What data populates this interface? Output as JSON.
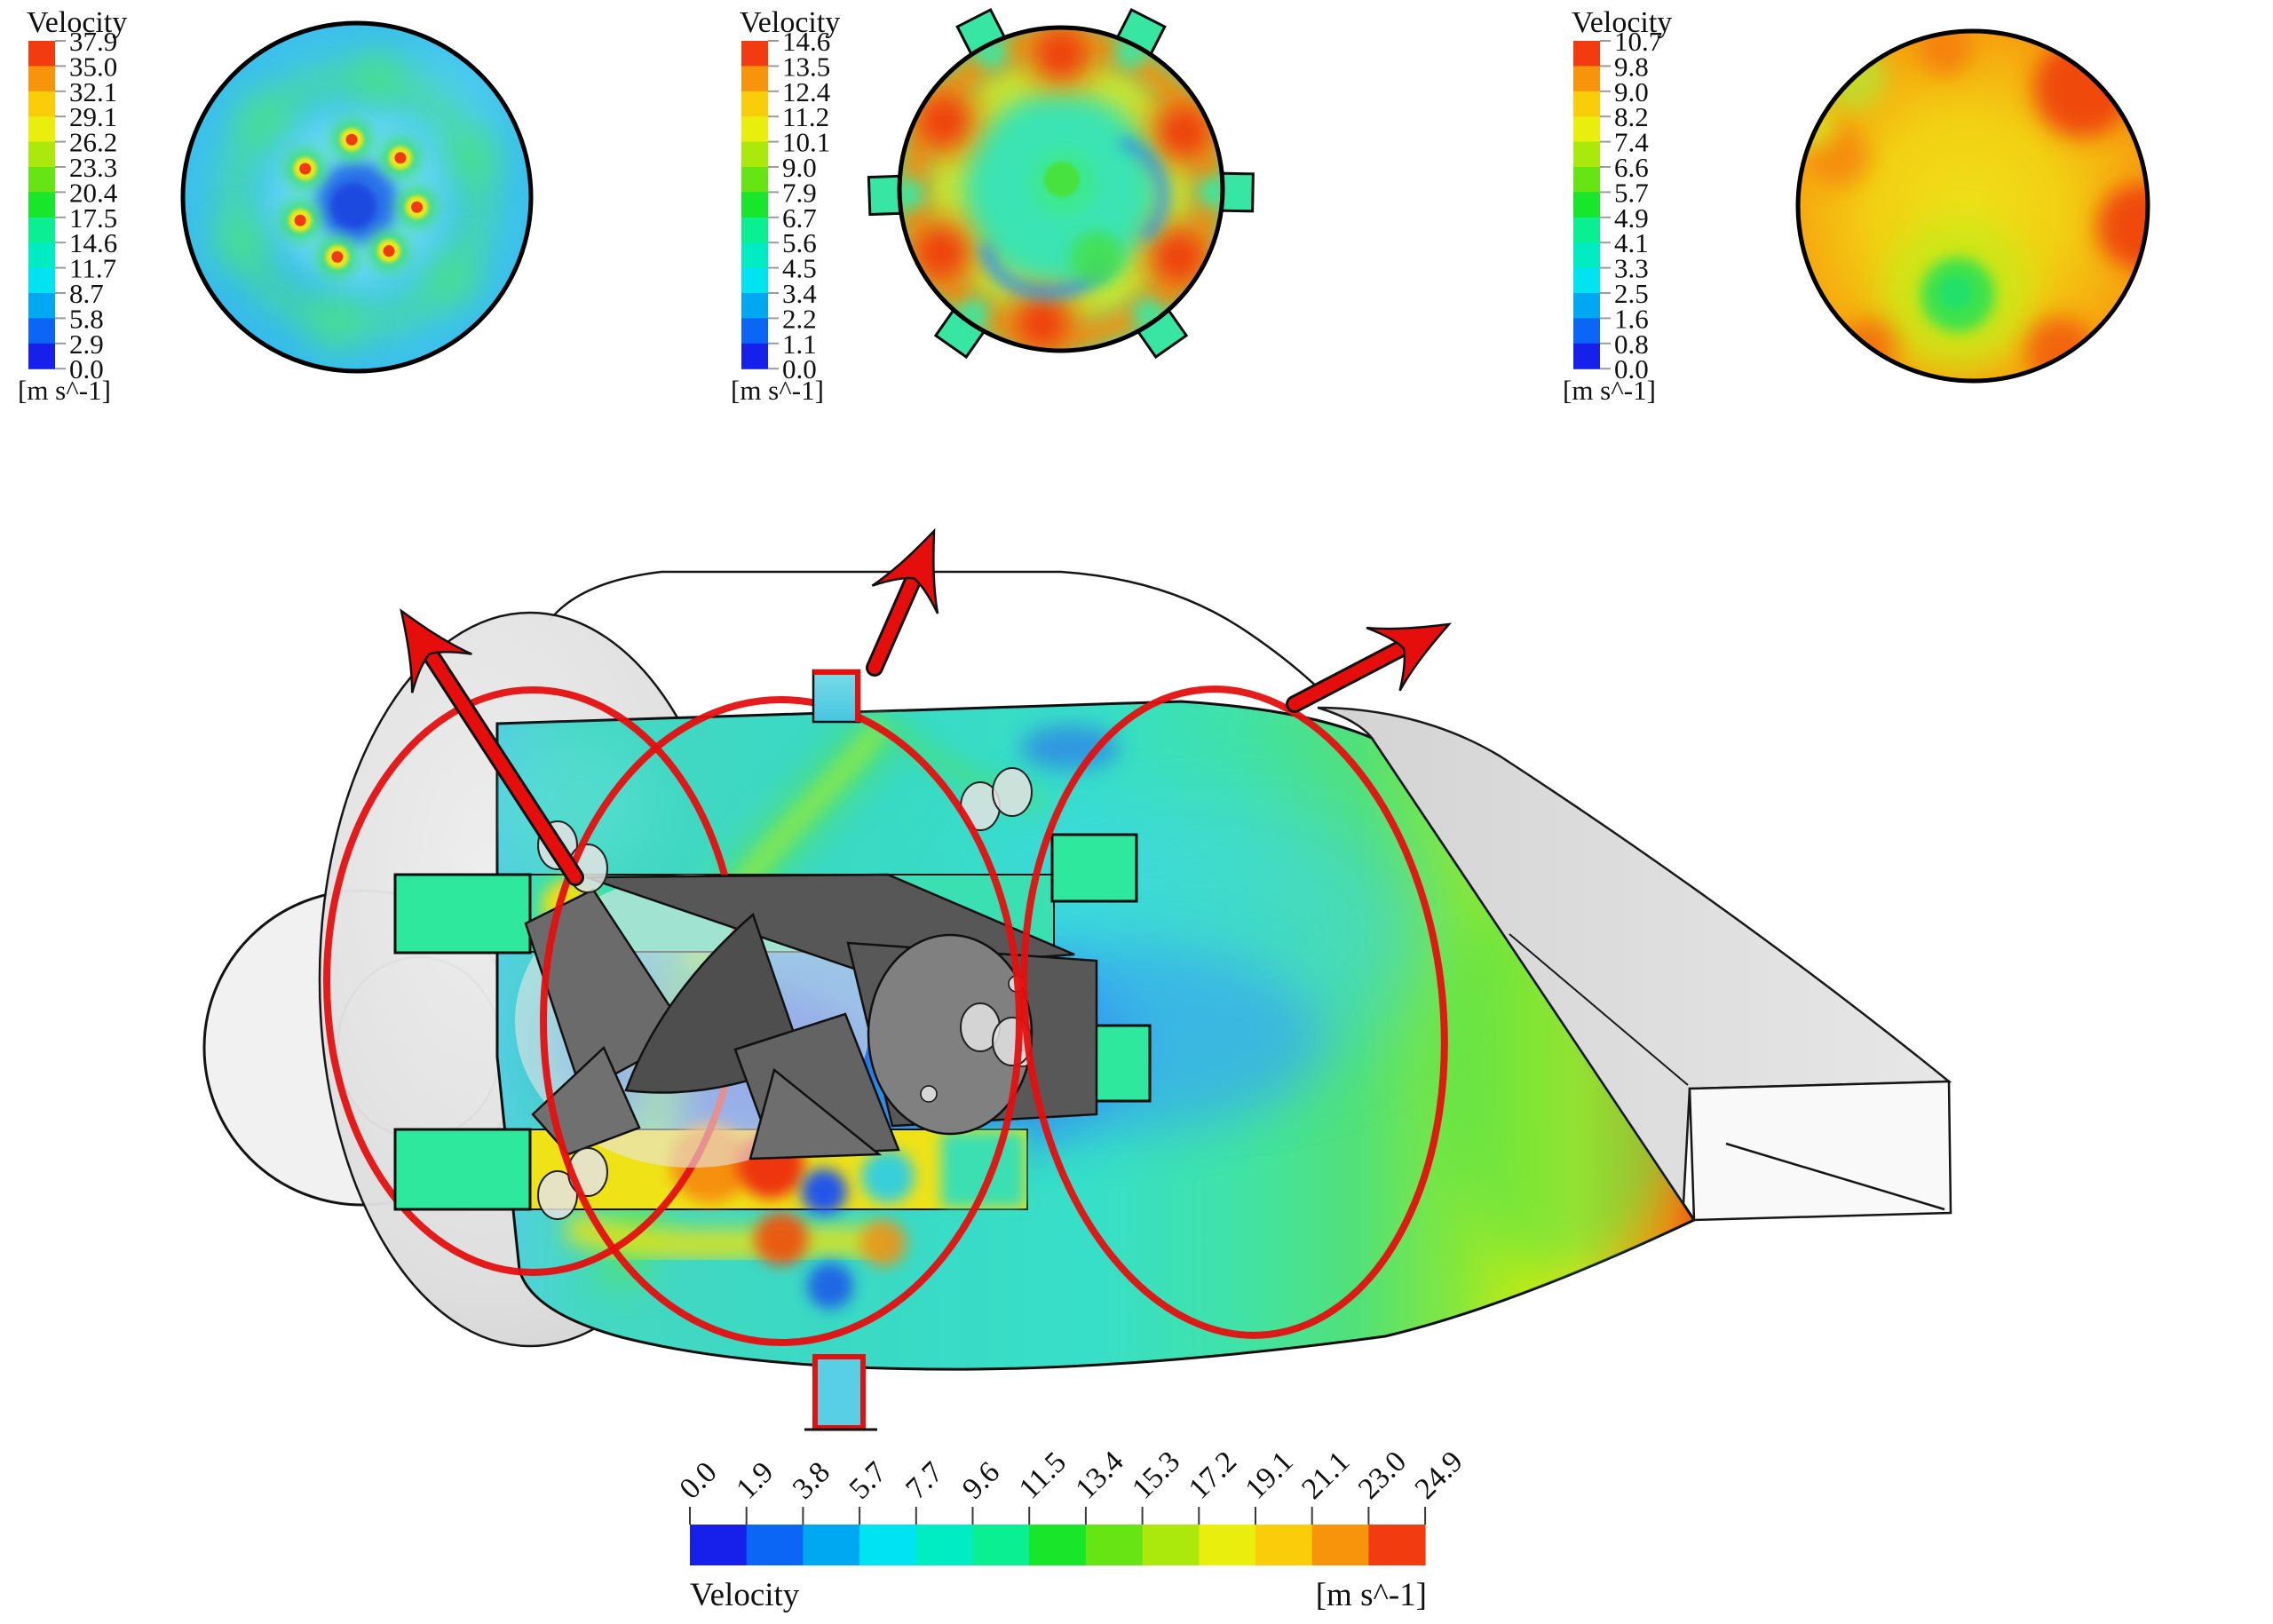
{
  "figure": {
    "legend_title": "Velocity",
    "unit_label": "[m s^-1]",
    "palette_low_to_high": [
      "#1620ea",
      "#0b66f6",
      "#00a8f2",
      "#00e4f2",
      "#00edc4",
      "#0aef92",
      "#17e62b",
      "#66e414",
      "#abe90d",
      "#e9ee0d",
      "#f9cd0a",
      "#f8940c",
      "#f23b0e"
    ],
    "legends": {
      "left": {
        "title": "Velocity",
        "unit": "[m s^-1]",
        "labels_high_to_low": [
          "37.9",
          "35.0",
          "32.1",
          "29.1",
          "26.2",
          "23.3",
          "20.4",
          "17.5",
          "14.6",
          "11.7",
          "8.7",
          "5.8",
          "2.9",
          "0.0"
        ]
      },
      "middle": {
        "title": "Velocity",
        "unit": "[m s^-1]",
        "labels_high_to_low": [
          "14.6",
          "13.5",
          "12.4",
          "11.2",
          "10.1",
          "9.0",
          "7.9",
          "6.7",
          "5.6",
          "4.5",
          "3.4",
          "2.2",
          "1.1",
          "0.0"
        ]
      },
      "right": {
        "title": "Velocity",
        "unit": "[m s^-1]",
        "labels_high_to_low": [
          "10.7",
          "9.8",
          "9.0",
          "8.2",
          "7.4",
          "6.6",
          "5.7",
          "4.9",
          "4.1",
          "3.3",
          "2.5",
          "1.6",
          "0.8",
          "0.0"
        ]
      }
    },
    "bottom_colorbar": {
      "title": "Velocity",
      "unit": "[m s^-1]",
      "tick_labels": [
        "0.0",
        "1.9",
        "3.8",
        "5.7",
        "7.7",
        "9.6",
        "11.5",
        "13.4",
        "15.3",
        "17.2",
        "19.1",
        "21.1",
        "23.0",
        "24.9"
      ]
    }
  },
  "chart_data": [
    {
      "type": "heatmap",
      "name": "cross-section-contour-1",
      "legend_title": "Velocity",
      "unit": "m s^-1",
      "value_range": [
        0.0,
        37.9
      ],
      "colorbar_ticks": [
        0.0,
        2.9,
        5.8,
        8.7,
        11.7,
        14.6,
        17.5,
        20.4,
        23.3,
        26.2,
        29.1,
        32.1,
        35.0,
        37.9
      ],
      "legend_position": "left-of-plot"
    },
    {
      "type": "heatmap",
      "name": "cross-section-contour-2",
      "legend_title": "Velocity",
      "unit": "m s^-1",
      "value_range": [
        0.0,
        14.6
      ],
      "colorbar_ticks": [
        0.0,
        1.1,
        2.2,
        3.4,
        4.5,
        5.6,
        6.7,
        7.9,
        9.0,
        10.1,
        11.2,
        12.4,
        13.5,
        14.6
      ],
      "legend_position": "left-of-plot"
    },
    {
      "type": "heatmap",
      "name": "cross-section-contour-3",
      "legend_title": "Velocity",
      "unit": "m s^-1",
      "value_range": [
        0.0,
        10.7
      ],
      "colorbar_ticks": [
        0.0,
        0.8,
        1.6,
        2.5,
        3.3,
        4.1,
        4.9,
        5.7,
        6.6,
        7.4,
        8.2,
        9.0,
        9.8,
        10.7
      ],
      "legend_position": "left-of-plot"
    },
    {
      "type": "heatmap",
      "name": "main-3d-midplane-contour",
      "legend_title": "Velocity",
      "unit": "m s^-1",
      "value_range": [
        0.0,
        24.9
      ],
      "colorbar_ticks": [
        0.0,
        1.9,
        3.8,
        5.7,
        7.7,
        9.6,
        11.5,
        13.4,
        15.3,
        17.2,
        19.1,
        21.1,
        23.0,
        24.9
      ],
      "legend_position": "bottom"
    }
  ]
}
